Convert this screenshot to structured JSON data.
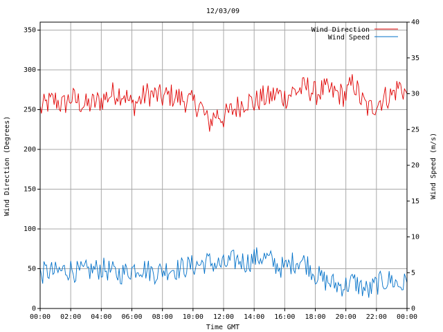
{
  "chart_data": {
    "type": "line",
    "title": "12/03/09",
    "xlabel": "Time GMT",
    "ylabel": "Wind Direction (Degrees)",
    "y2label": "Wind Speed (m/s)",
    "x_ticks": [
      "00:00",
      "02:00",
      "04:00",
      "06:00",
      "08:00",
      "10:00",
      "12:00",
      "14:00",
      "16:00",
      "18:00",
      "20:00",
      "22:00",
      "00:00"
    ],
    "y_ticks": [
      "0",
      "50",
      "100",
      "150",
      "200",
      "250",
      "300",
      "350"
    ],
    "y2_ticks": [
      "0",
      "5",
      "10",
      "15",
      "20",
      "25",
      "30",
      "35",
      "40"
    ],
    "xlim": [
      0,
      24
    ],
    "ylim": [
      0,
      360
    ],
    "y2lim": [
      0,
      40
    ],
    "grid": true,
    "legend_position": "top-right",
    "series": [
      {
        "name": "Wind Direction",
        "color": "#e00000",
        "axis": "left",
        "x": [
          0,
          0.5,
          1,
          1.5,
          2,
          2.5,
          3,
          3.5,
          4,
          4.5,
          5,
          5.5,
          6,
          6.5,
          7,
          7.5,
          8,
          8.5,
          9,
          9.5,
          10,
          10.5,
          11,
          11.5,
          12,
          12.5,
          13,
          13.5,
          14,
          14.5,
          15,
          15.5,
          16,
          16.5,
          17,
          17.5,
          18,
          18.5,
          19,
          19.5,
          20,
          20.5,
          21,
          21.5,
          22,
          22.5,
          23,
          23.5,
          24
        ],
        "values": [
          250,
          258,
          262,
          255,
          265,
          260,
          255,
          258,
          262,
          268,
          272,
          270,
          255,
          262,
          270,
          268,
          265,
          268,
          265,
          262,
          258,
          255,
          232,
          245,
          240,
          248,
          255,
          262,
          258,
          265,
          265,
          270,
          265,
          272,
          275,
          278,
          270,
          275,
          272,
          270,
          268,
          285,
          262,
          250,
          258,
          265,
          268,
          280,
          270
        ]
      },
      {
        "name": "Wind Speed",
        "color": "#0070c8",
        "axis": "right",
        "x": [
          0,
          0.5,
          1,
          1.5,
          2,
          2.5,
          3,
          3.5,
          4,
          4.5,
          5,
          5.5,
          6,
          6.5,
          7,
          7.5,
          8,
          8.5,
          9,
          9.5,
          10,
          10.5,
          11,
          11.5,
          12,
          12.5,
          13,
          13.5,
          14,
          14.5,
          15,
          15.5,
          16,
          16.5,
          17,
          17.5,
          18,
          18.5,
          19,
          19.5,
          20,
          20.5,
          21,
          21.5,
          22,
          22.5,
          23,
          23.5,
          24
        ],
        "values": [
          4.8,
          5.2,
          5.0,
          5.3,
          5.5,
          5.0,
          5.2,
          5.4,
          5.6,
          5.3,
          4.8,
          5.0,
          5.5,
          5.8,
          5.4,
          5.0,
          5.3,
          5.6,
          5.5,
          5.8,
          6.0,
          6.2,
          6.5,
          6.2,
          6.0,
          6.6,
          6.8,
          6.4,
          7.0,
          7.2,
          6.8,
          6.0,
          5.6,
          6.4,
          6.8,
          6.2,
          4.8,
          4.0,
          3.6,
          3.2,
          3.2,
          3.8,
          3.0,
          2.4,
          3.4,
          3.8,
          4.0,
          3.2,
          3.6
        ]
      }
    ]
  }
}
